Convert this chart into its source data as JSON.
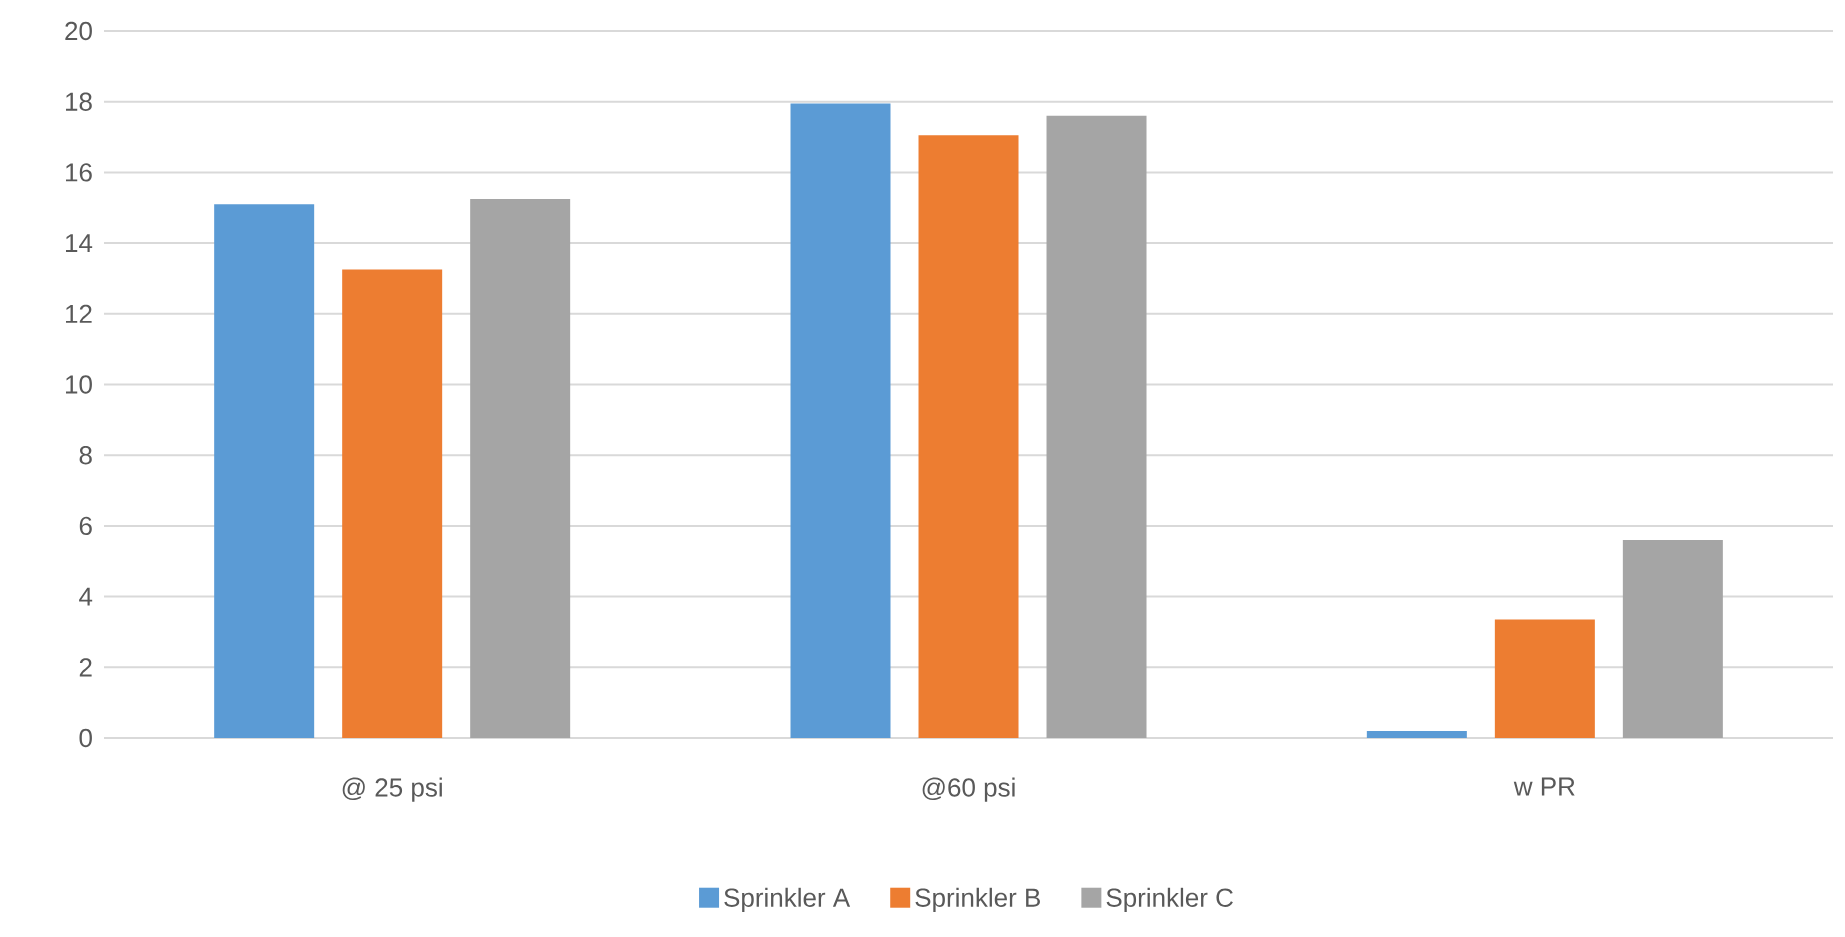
{
  "chart_data": {
    "type": "bar",
    "categories": [
      "@ 25 psi",
      "@60 psi",
      "w PR"
    ],
    "series": [
      {
        "name": "Sprinkler A",
        "color": "#5b9bd5",
        "values": [
          15.1,
          17.95,
          0.2
        ]
      },
      {
        "name": "Sprinkler B",
        "color": "#ed7d31",
        "values": [
          13.25,
          17.05,
          3.35
        ]
      },
      {
        "name": "Sprinkler C",
        "color": "#a5a5a5",
        "values": [
          15.25,
          17.6,
          5.6
        ]
      }
    ],
    "ylim": [
      0,
      20
    ],
    "yticks": [
      0,
      2,
      4,
      6,
      8,
      10,
      12,
      14,
      16,
      18,
      20
    ],
    "grid": "y",
    "legend": "bottom"
  }
}
